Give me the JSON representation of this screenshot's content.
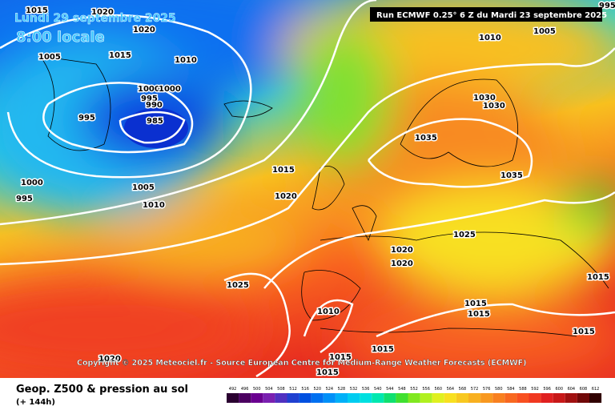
{
  "header": {
    "date": "Lundi 29 septembre 2025",
    "time": "8:00 locale",
    "run": "Run ECMWF 0.25° 6 Z du Mardi 23 septembre 2025"
  },
  "copyright": "Copyright © 2025 Meteociel.fr - Source European Centre for Medium-Range Weather Forecasts (ECMWF)",
  "footer": {
    "title": "Geop. Z500 & pression au sol",
    "range": "(+ 144h)"
  },
  "isobar_labels": [
    "1015",
    "1020",
    "1020",
    "1005",
    "1015",
    "1010",
    "1000",
    "1000",
    "995",
    "990",
    "995",
    "985",
    "1000",
    "995",
    "1005",
    "1010",
    "1015",
    "1020",
    "1010",
    "1005",
    "995",
    "1030",
    "1030",
    "1035",
    "1035",
    "1025",
    "1020",
    "1020",
    "1025",
    "1010",
    "1015",
    "1015",
    "1015",
    "1015",
    "1015",
    "1015",
    "1015",
    "1020"
  ],
  "legend": {
    "labels": [
      492,
      496,
      500,
      504,
      508,
      512,
      516,
      520,
      524,
      528,
      532,
      536,
      540,
      544,
      548,
      552,
      556,
      560,
      564,
      568,
      572,
      576,
      580,
      584,
      588,
      592,
      596,
      600,
      604,
      608,
      612
    ],
    "colors": [
      "#2a0030",
      "#4b0060",
      "#6a0090",
      "#7a20b0",
      "#5030c0",
      "#2040d0",
      "#0050e0",
      "#0070f0",
      "#0090f8",
      "#00b0f8",
      "#00ccf0",
      "#00e0e0",
      "#00e8b0",
      "#10e070",
      "#40e030",
      "#80e820",
      "#b0f020",
      "#e0f020",
      "#f8e020",
      "#f8c820",
      "#f8b020",
      "#f89820",
      "#f88020",
      "#f86820",
      "#f85020",
      "#f03820",
      "#e02020",
      "#c81818",
      "#a01010",
      "#700808",
      "#300000"
    ]
  }
}
